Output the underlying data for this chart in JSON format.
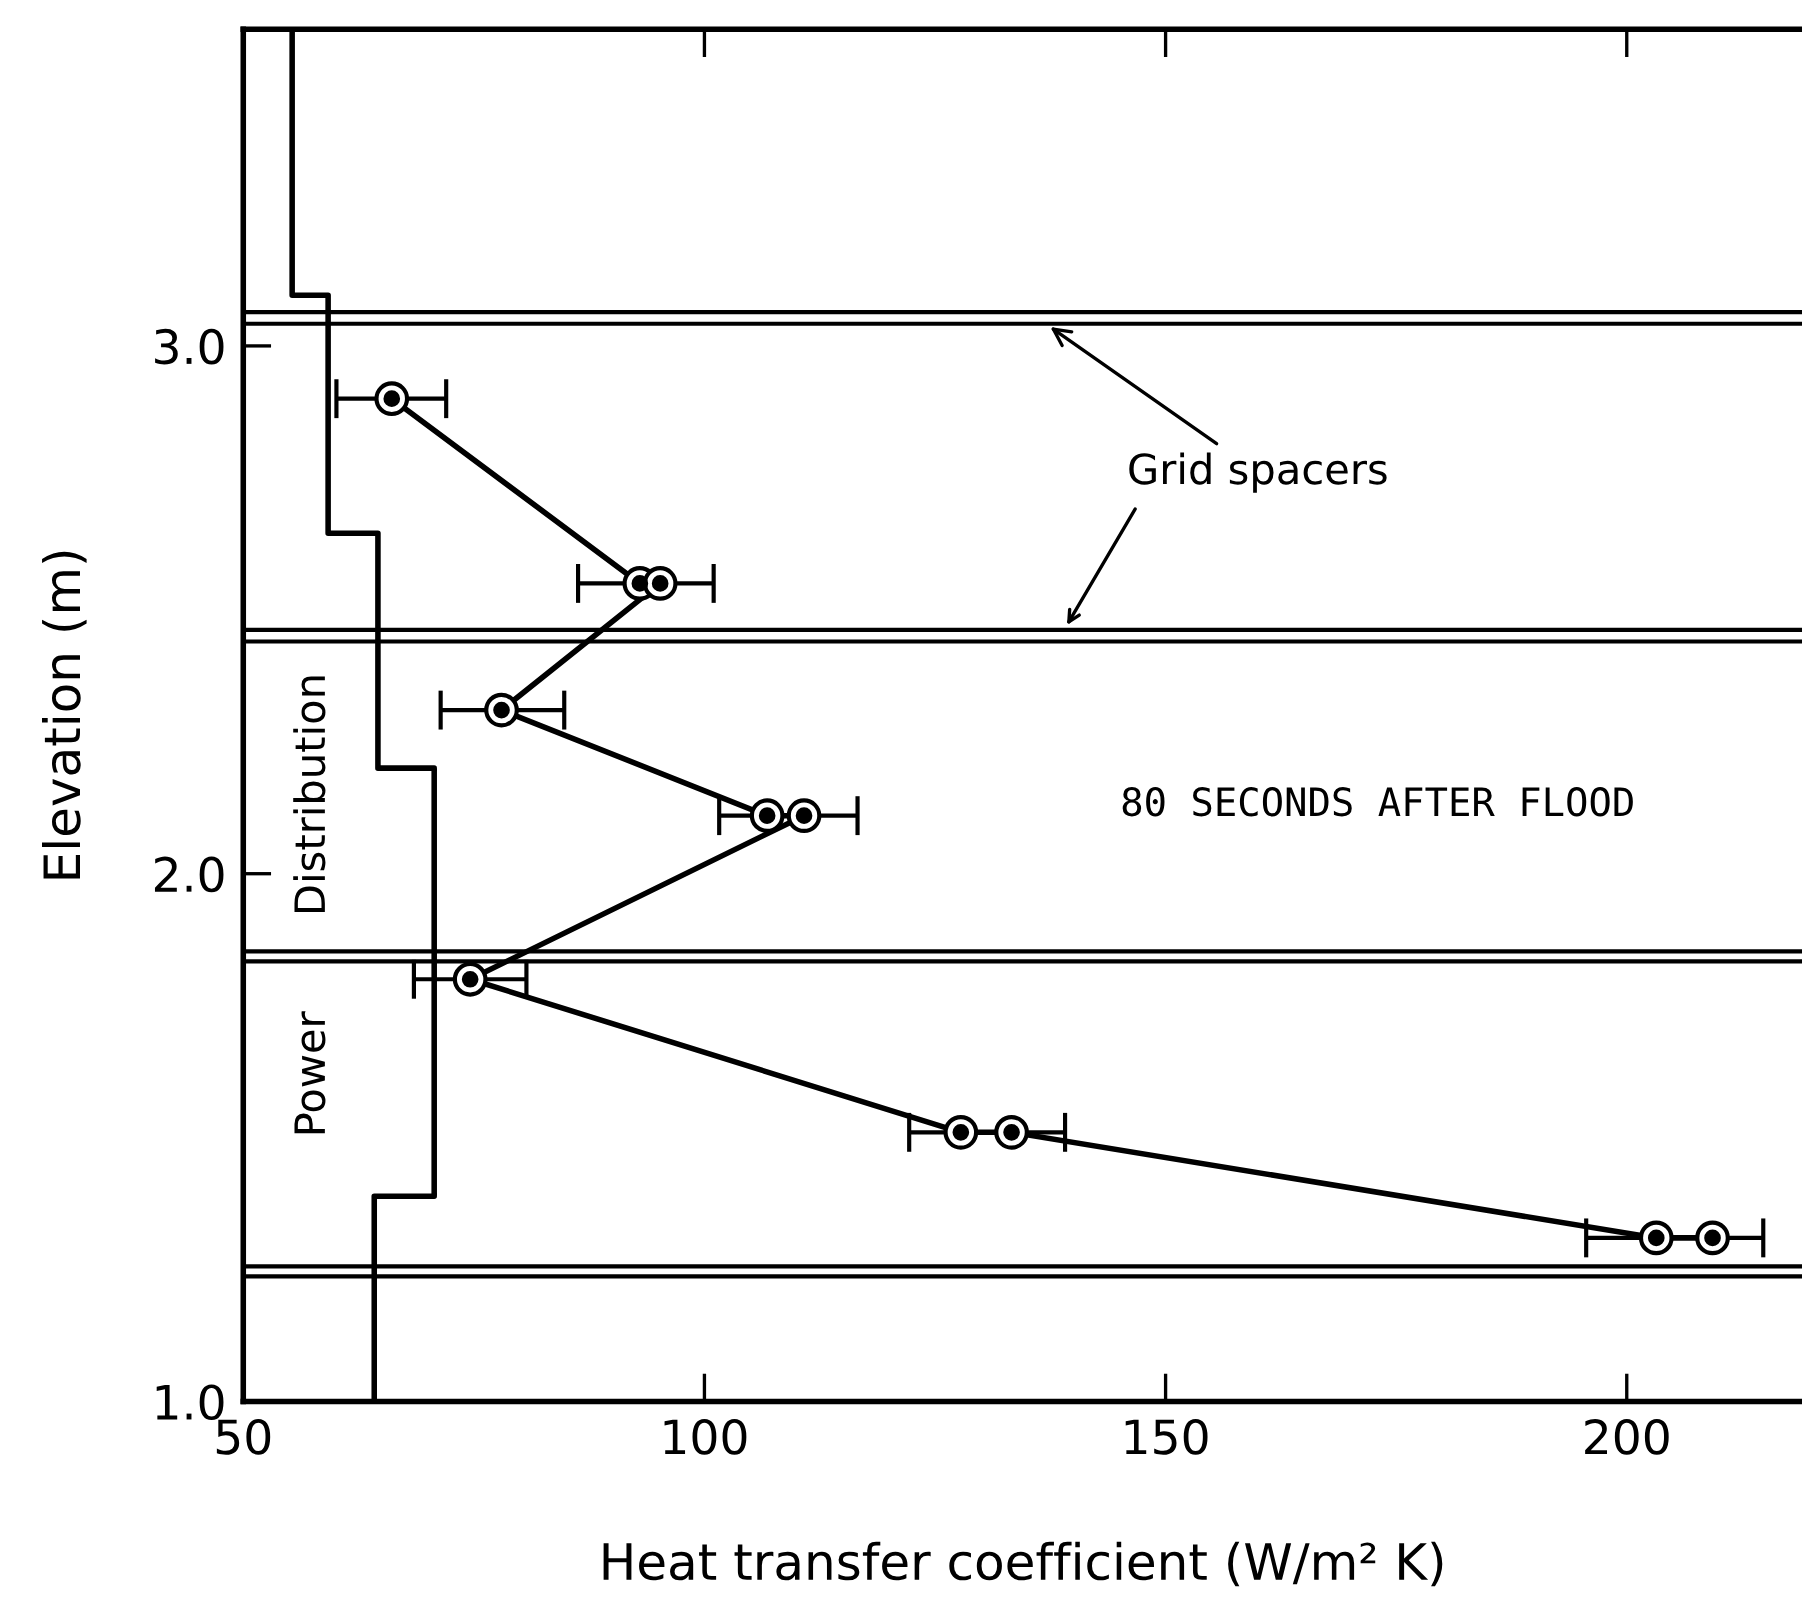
{
  "chart_data": {
    "type": "line",
    "xlabel": "Heat transfer coefficient (W/m² K)",
    "ylabel": "Elevation (m)",
    "xlim": [
      50,
      219
    ],
    "ylim": [
      1.0,
      3.6
    ],
    "xticks": [
      50,
      100,
      150,
      200
    ],
    "yticks": [
      {
        "value": 1,
        "label": "1.0"
      },
      {
        "value": 2,
        "label": "2.0"
      },
      {
        "value": 3,
        "label": "3.0"
      }
    ],
    "grid": false,
    "legend": false,
    "series": [
      {
        "color": "#000000",
        "marker": "circle",
        "line_style": "solid",
        "x": [
          66.1,
          93.0,
          95.2,
          78.0,
          106.8,
          110.8,
          74.6,
          127.8,
          133.3,
          203.2,
          209.3
        ],
        "values": [
          2.9,
          2.55,
          2.55,
          2.31,
          2.11,
          2.11,
          1.8,
          1.51,
          1.51,
          1.31,
          1.31
        ],
        "xerrors": [
          [
            60.1,
            72.0
          ],
          [
            86.3,
            101.0
          ],
          null,
          [
            71.4,
            84.8
          ],
          [
            101.6,
            116.6
          ],
          null,
          [
            68.5,
            80.7
          ],
          [
            122.2,
            139.1
          ],
          null,
          [
            195.6,
            214.8
          ],
          null
        ]
      },
      {
        "color": "#000000",
        "marker": "none",
        "line_style": "solid",
        "x": [
          55.3,
          55.3,
          59.2,
          59.2,
          64.6,
          64.6,
          70.7,
          70.7,
          64.2,
          64.2
        ],
        "values": [
          3.6,
          3.096,
          3.096,
          2.645,
          2.645,
          2.2,
          2.2,
          1.389,
          1.389,
          1.0
        ]
      }
    ],
    "ref_lines": [
      {
        "axis": "y",
        "value": 3.064,
        "color": "#000000"
      },
      {
        "axis": "y",
        "value": 3.042,
        "color": "#000000"
      },
      {
        "axis": "y",
        "value": 2.462,
        "color": "#000000"
      },
      {
        "axis": "y",
        "value": 2.44,
        "color": "#000000"
      },
      {
        "axis": "y",
        "value": 1.853,
        "color": "#000000"
      },
      {
        "axis": "y",
        "value": 1.834,
        "color": "#000000"
      },
      {
        "axis": "y",
        "value": 1.256,
        "color": "#000000"
      },
      {
        "axis": "y",
        "value": 1.237,
        "color": "#000000"
      }
    ],
    "annotations": [
      {
        "text": "Grid spacers",
        "x": 137,
        "y": 3.042
      },
      "80 SECONDS AFTER FLOOD",
      "Distribution",
      "Power"
    ]
  }
}
